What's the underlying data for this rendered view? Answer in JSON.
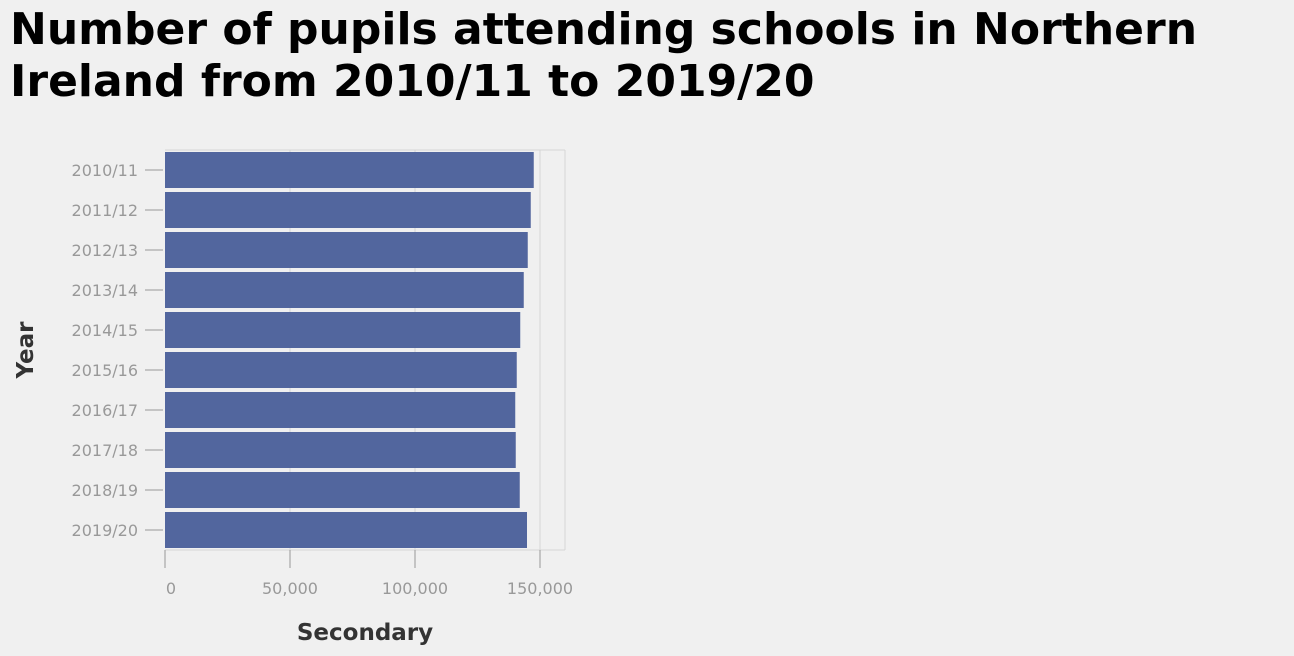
{
  "chart_data": {
    "type": "bar",
    "orientation": "horizontal",
    "title": "Number of pupils attending schools in Northern Ireland from 2010/11 to 2019/20",
    "xlabel": "Secondary",
    "ylabel": "Year",
    "categories": [
      "2010/11",
      "2011/12",
      "2012/13",
      "2013/14",
      "2014/15",
      "2015/16",
      "2016/17",
      "2017/18",
      "2018/19",
      "2019/20"
    ],
    "values": [
      147500,
      146300,
      145100,
      143500,
      142100,
      140700,
      140100,
      140300,
      141900,
      144800
    ],
    "xlim": [
      0,
      160000
    ],
    "xticks": [
      0,
      50000,
      100000,
      150000
    ],
    "xtick_labels": [
      "0",
      "50,000",
      "100,000",
      "150,000"
    ],
    "bar_color": "#52669e",
    "grid": true
  }
}
